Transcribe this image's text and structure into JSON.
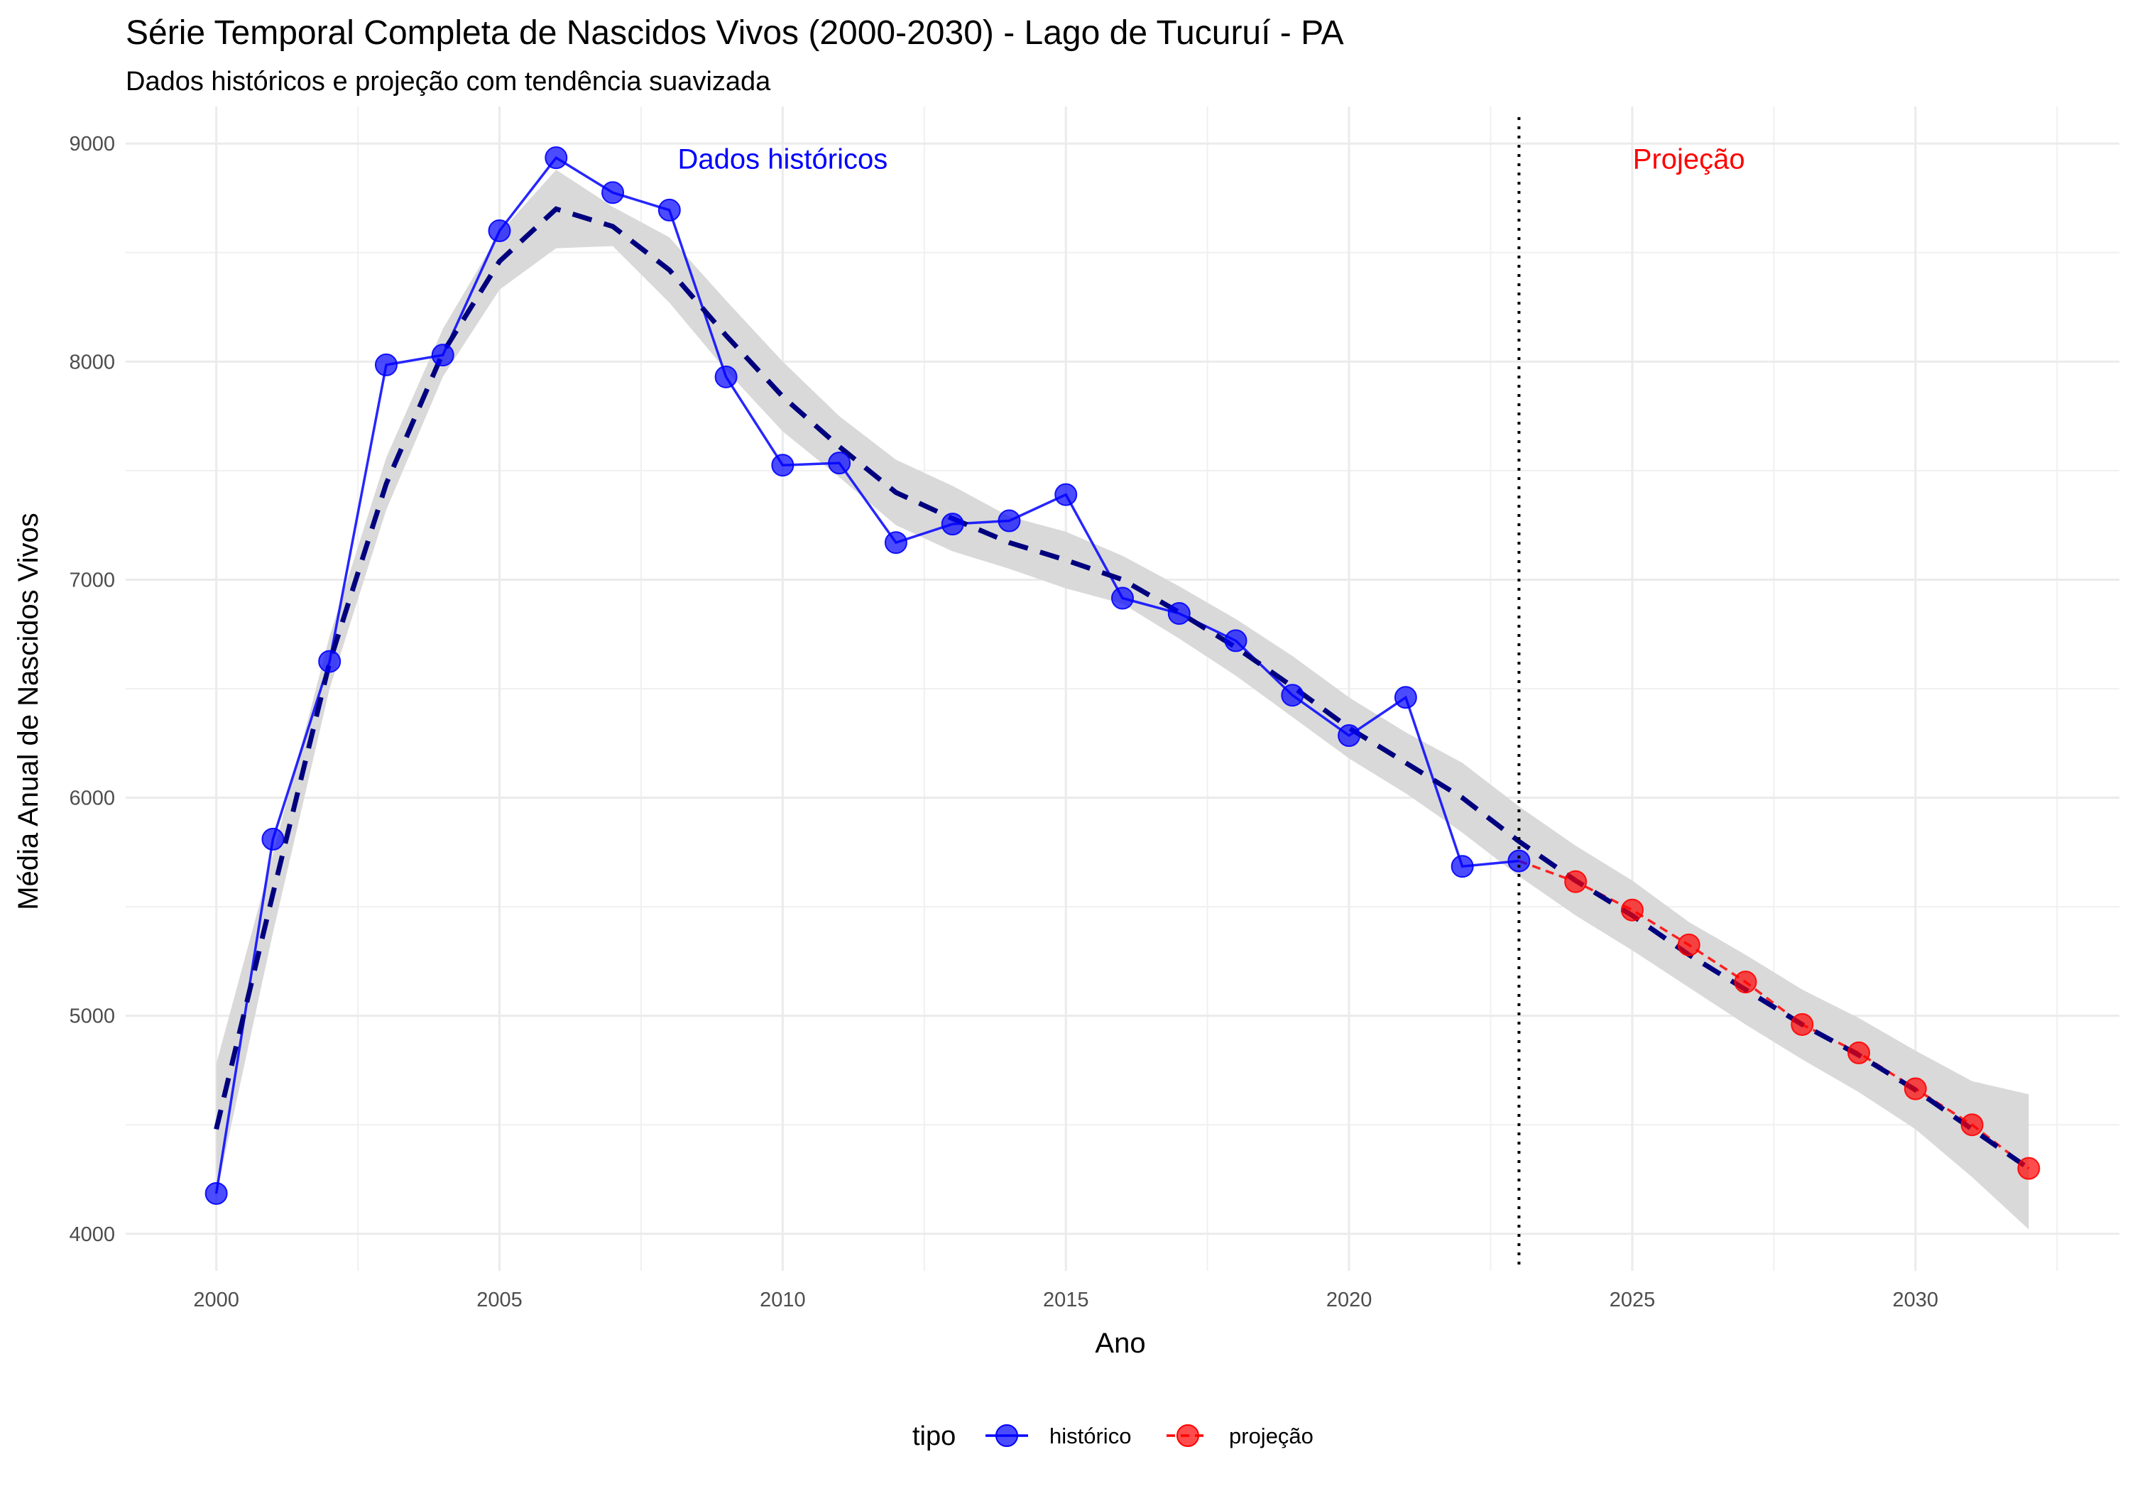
{
  "chart_data": {
    "type": "line",
    "title": "Série Temporal Completa de Nascidos Vivos (2000-2030) -  Lago de Tucuruí - PA",
    "subtitle": "Dados históricos e projeção com tendência suavizada",
    "xlabel": "Ano",
    "ylabel": "Média Anual de Nascidos Vivos",
    "xlim": [
      1998.4,
      2033.6
    ],
    "ylim": [
      3830,
      9170
    ],
    "x_ticks": [
      2000,
      2005,
      2010,
      2015,
      2020,
      2025,
      2030
    ],
    "y_ticks": [
      4000,
      5000,
      6000,
      7000,
      8000,
      9000
    ],
    "grid": true,
    "legend": {
      "title": "tipo",
      "position": "bottom",
      "items": [
        "histórico",
        "projeção"
      ]
    },
    "annotations": [
      {
        "text": "Dados históricos",
        "x": 2010,
        "y": 8930,
        "color": "#0000ff"
      },
      {
        "text": "Projeção",
        "x": 2026,
        "y": 8930,
        "color": "#ff0000"
      }
    ],
    "reference_line": {
      "x": 2023,
      "style": "dotted",
      "color": "#000000"
    },
    "series": [
      {
        "name": "histórico",
        "color": "#0000ff",
        "line_style": "solid",
        "x": [
          2000,
          2001,
          2002,
          2003,
          2004,
          2005,
          2006,
          2007,
          2008,
          2009,
          2010,
          2011,
          2012,
          2013,
          2014,
          2015,
          2016,
          2017,
          2018,
          2019,
          2020,
          2021,
          2022,
          2023
        ],
        "values": [
          4185,
          5810,
          6625,
          7985,
          8030,
          8600,
          8935,
          8775,
          8695,
          7930,
          7525,
          7535,
          7170,
          7255,
          7270,
          7390,
          6915,
          6845,
          6720,
          6470,
          6285,
          6460,
          5685,
          5710
        ]
      },
      {
        "name": "projeção",
        "color": "#ff0000",
        "line_style": "dashed",
        "x": [
          2023,
          2024,
          2025,
          2026,
          2027,
          2028,
          2029,
          2030,
          2031,
          2032
        ],
        "values": [
          5710,
          5615,
          5485,
          5325,
          5155,
          4960,
          4830,
          4665,
          4500,
          4300
        ]
      }
    ],
    "trend": {
      "color": "#00007f",
      "band_color": "#d9d9d9",
      "x": [
        2000,
        2001,
        2002,
        2003,
        2004,
        2005,
        2006,
        2007,
        2008,
        2009,
        2010,
        2011,
        2012,
        2013,
        2014,
        2015,
        2016,
        2017,
        2018,
        2019,
        2020,
        2021,
        2022,
        2023,
        2024,
        2025,
        2026,
        2027,
        2028,
        2029,
        2030,
        2031,
        2032
      ],
      "values": [
        4480,
        5560,
        6620,
        7440,
        8040,
        8460,
        8700,
        8620,
        8420,
        8120,
        7840,
        7610,
        7400,
        7280,
        7170,
        7090,
        7000,
        6850,
        6690,
        6510,
        6320,
        6160,
        6000,
        5800,
        5620,
        5460,
        5280,
        5120,
        4960,
        4820,
        4660,
        4480,
        4300
      ],
      "lower": [
        4180,
        5380,
        6500,
        7320,
        7930,
        8330,
        8520,
        8530,
        8270,
        7960,
        7680,
        7470,
        7250,
        7130,
        7050,
        6960,
        6890,
        6730,
        6560,
        6370,
        6180,
        6020,
        5840,
        5640,
        5460,
        5300,
        5130,
        4960,
        4800,
        4650,
        4480,
        4260,
        4020
      ],
      "upper": [
        4780,
        5740,
        6740,
        7560,
        8150,
        8590,
        8880,
        8710,
        8570,
        8280,
        8000,
        7750,
        7550,
        7430,
        7290,
        7220,
        7110,
        6970,
        6820,
        6650,
        6460,
        6300,
        6160,
        5960,
        5780,
        5620,
        5430,
        5280,
        5120,
        4990,
        4840,
        4700,
        4640
      ]
    }
  }
}
